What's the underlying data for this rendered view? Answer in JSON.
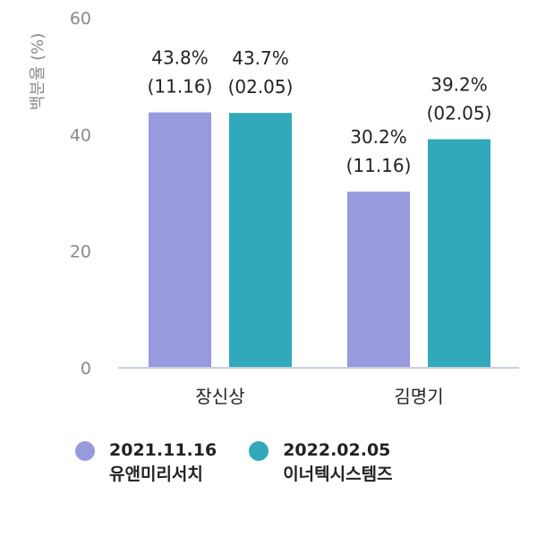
{
  "chart_data": {
    "type": "bar",
    "title": "",
    "ylabel": "백분율 (%)",
    "xlabel": "",
    "ylim": [
      0,
      60
    ],
    "yticks": [
      0,
      20,
      40,
      60
    ],
    "categories": [
      "장신상",
      "김명기"
    ],
    "series": [
      {
        "name": "2021.11.16 유앤미리서치",
        "date": "2021.11.16",
        "org": "유앤미리서치",
        "color": "#9999dd",
        "values": [
          43.8,
          30.2
        ],
        "labels": [
          [
            "43.8%",
            "(11.16)"
          ],
          [
            "30.2%",
            "(11.16)"
          ]
        ]
      },
      {
        "name": "2022.02.05 이너텍시스템즈",
        "date": "2022.02.05",
        "org": "이너텍시스템즈",
        "color": "#31a9ba",
        "values": [
          43.7,
          39.2
        ],
        "labels": [
          [
            "43.7%",
            "(02.05)"
          ],
          [
            "39.2%",
            "(02.05)"
          ]
        ]
      }
    ],
    "grid": false,
    "legend_position": "bottom-left"
  }
}
